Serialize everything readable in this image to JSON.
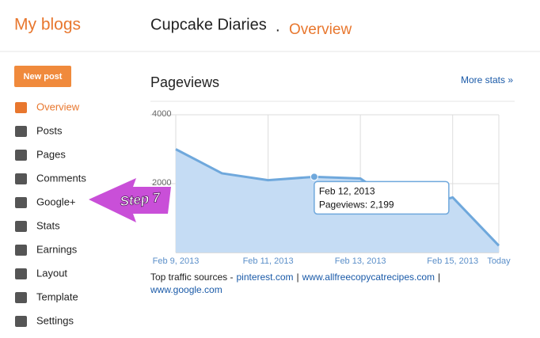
{
  "header": {
    "title": "My blogs",
    "blog_name": "Cupcake Diaries",
    "separator": ".",
    "section": "Overview"
  },
  "sidebar": {
    "new_post": "New post",
    "items": [
      "Overview",
      "Posts",
      "Pages",
      "Comments",
      "Google+",
      "Stats",
      "Earnings",
      "Layout",
      "Template",
      "Settings"
    ]
  },
  "annotation": "Step 7",
  "panel": {
    "title": "Pageviews",
    "more_link": "More stats »"
  },
  "chart_data": {
    "type": "area",
    "categories": [
      "Feb 9, 2013",
      null,
      "Feb 11, 2013",
      null,
      "Feb 13, 2013",
      null,
      "Feb 15, 2013",
      "Today"
    ],
    "values": [
      3000,
      2300,
      2100,
      2199,
      2150,
      1250,
      1600,
      200
    ],
    "color": "#6fa8dc",
    "fill": "#c5dcf4",
    "ylim": [
      0,
      4000
    ],
    "yticks": [
      2000,
      4000
    ],
    "grid": true,
    "tooltip": {
      "index": 3,
      "title": "Feb 12, 2013",
      "text": "Pageviews: 2,199"
    }
  },
  "traffic": {
    "label": "Top traffic sources -",
    "sources": [
      "pinterest.com",
      "www.allfreecopycatrecipes.com",
      "www.google.com"
    ],
    "separator": "|"
  }
}
